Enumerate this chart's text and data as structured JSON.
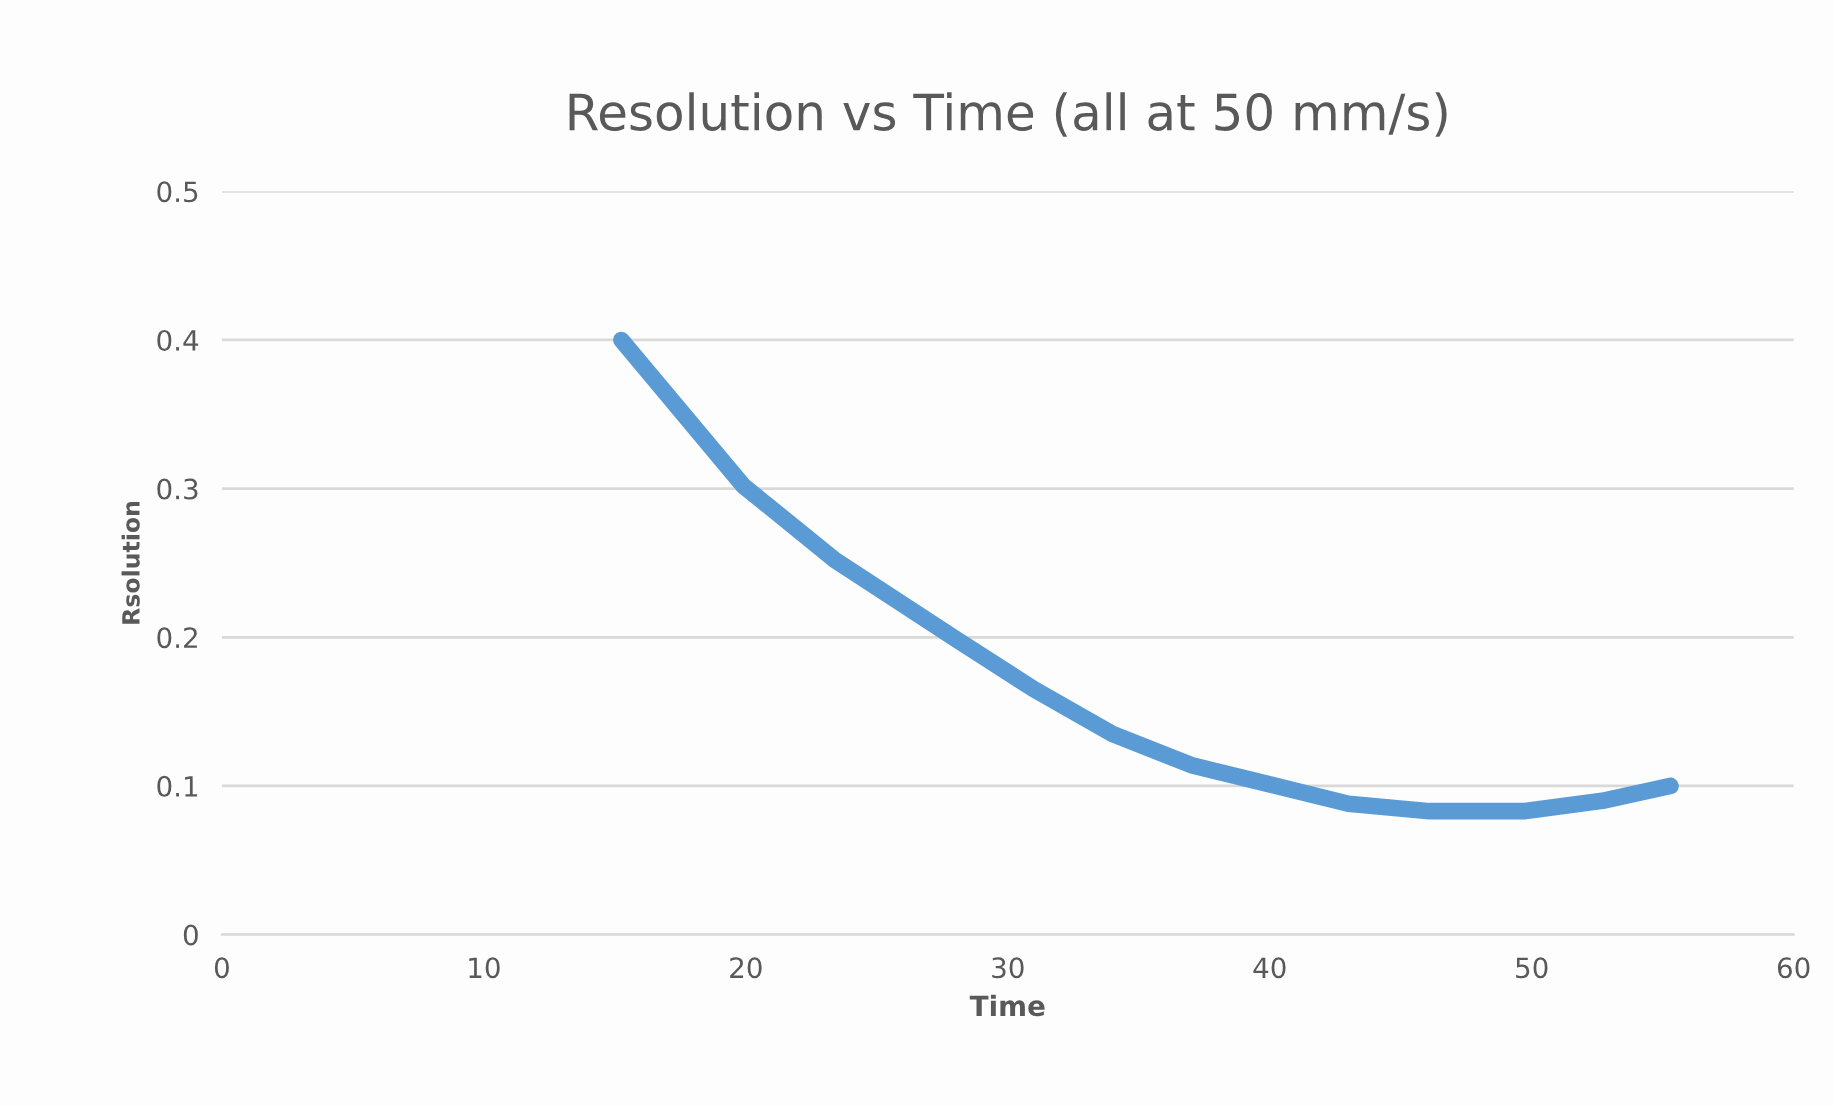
{
  "chart_data": {
    "type": "line",
    "title": "Resolution vs Time (all at 50 mm/s)",
    "xlabel": "Time",
    "ylabel": "Rsolution",
    "series": [
      {
        "color": "#5b9bd5",
        "x": [
          15.25,
          19.9,
          23.4,
          28.0,
          31.0,
          34.0,
          37.0,
          40.0,
          43.0,
          46.1,
          49.7,
          52.7,
          55.3
        ],
        "values": [
          0.4,
          0.302,
          0.252,
          0.199,
          0.165,
          0.135,
          0.114,
          0.101,
          0.088,
          0.083,
          0.083,
          0.09,
          0.1
        ]
      }
    ],
    "xlim": [
      0,
      60
    ],
    "xticks": [
      0,
      10,
      20,
      30,
      40,
      50,
      60
    ],
    "ylim": [
      0,
      0.5
    ],
    "yticks": [
      0,
      0.1,
      0.2,
      0.3,
      0.4,
      0.5
    ],
    "grid": "y",
    "marker": "none",
    "line_style": "solid"
  }
}
